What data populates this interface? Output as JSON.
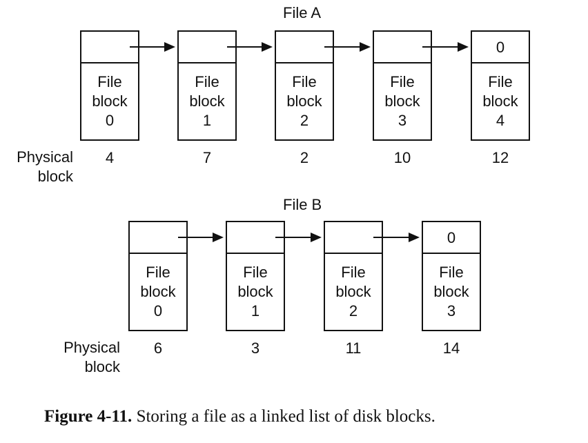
{
  "file_a": {
    "title": "File A",
    "physical_label_line1": "Physical",
    "physical_label_line2": "block",
    "blocks": [
      {
        "ptr": "",
        "line1": "File",
        "line2": "block",
        "index": "0",
        "physical": "4"
      },
      {
        "ptr": "",
        "line1": "File",
        "line2": "block",
        "index": "1",
        "physical": "7"
      },
      {
        "ptr": "",
        "line1": "File",
        "line2": "block",
        "index": "2",
        "physical": "2"
      },
      {
        "ptr": "",
        "line1": "File",
        "line2": "block",
        "index": "3",
        "physical": "10"
      },
      {
        "ptr": "0",
        "line1": "File",
        "line2": "block",
        "index": "4",
        "physical": "12"
      }
    ]
  },
  "file_b": {
    "title": "File B",
    "physical_label_line1": "Physical",
    "physical_label_line2": "block",
    "blocks": [
      {
        "ptr": "",
        "line1": "File",
        "line2": "block",
        "index": "0",
        "physical": "6"
      },
      {
        "ptr": "",
        "line1": "File",
        "line2": "block",
        "index": "1",
        "physical": "3"
      },
      {
        "ptr": "",
        "line1": "File",
        "line2": "block",
        "index": "2",
        "physical": "11"
      },
      {
        "ptr": "0",
        "line1": "File",
        "line2": "block",
        "index": "3",
        "physical": "14"
      }
    ]
  },
  "caption": {
    "label": "Figure 4-11.",
    "text": "Storing a file as a linked list of disk blocks."
  }
}
